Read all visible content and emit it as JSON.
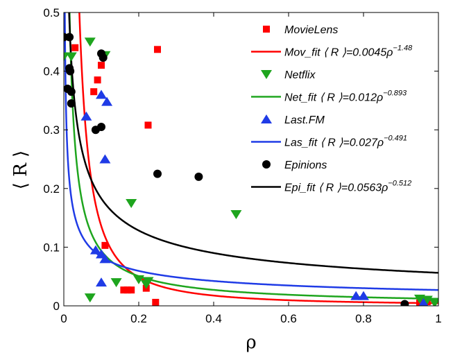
{
  "chart_data": {
    "type": "scatter",
    "title": "",
    "xlabel": "ρ",
    "ylabel": "⟨ R ⟩",
    "xlim": [
      0,
      1
    ],
    "ylim": [
      0,
      0.5
    ],
    "x_ticks": [
      0,
      0.2,
      0.4,
      0.6,
      0.8,
      1
    ],
    "x_tick_labels": [
      "0",
      "0.2",
      "0.4",
      "0.6",
      "0.8",
      "1"
    ],
    "y_ticks": [
      0,
      0.1,
      0.2,
      0.3,
      0.4,
      0.5
    ],
    "y_tick_labels": [
      "0",
      "0.1",
      "0.2",
      "0.3",
      "0.4",
      "0.5"
    ],
    "legend_position": "top-right",
    "series": [
      {
        "name": "MovieLens",
        "marker": "square",
        "color": "#ff0000",
        "points": [
          [
            0.03,
            0.44
          ],
          [
            0.08,
            0.365
          ],
          [
            0.09,
            0.385
          ],
          [
            0.1,
            0.41
          ],
          [
            0.11,
            0.103
          ],
          [
            0.16,
            0.027
          ],
          [
            0.17,
            0.027
          ],
          [
            0.18,
            0.027
          ],
          [
            0.22,
            0.03
          ],
          [
            0.225,
            0.308
          ],
          [
            0.245,
            0.006
          ],
          [
            0.25,
            0.437
          ],
          [
            0.95,
            0.005
          ],
          [
            0.97,
            0.007
          ]
        ]
      },
      {
        "name": "Netflix",
        "marker": "triangle-down",
        "color": "#1ea51e",
        "points": [
          [
            0.0,
            0.425
          ],
          [
            0.02,
            0.425
          ],
          [
            0.07,
            0.014
          ],
          [
            0.07,
            0.45
          ],
          [
            0.11,
            0.427
          ],
          [
            0.14,
            0.04
          ],
          [
            0.18,
            0.175
          ],
          [
            0.2,
            0.045
          ],
          [
            0.22,
            0.037
          ],
          [
            0.225,
            0.042
          ],
          [
            0.46,
            0.156
          ],
          [
            0.95,
            0.012
          ],
          [
            0.97,
            0.01
          ],
          [
            0.99,
            0.005
          ]
        ]
      },
      {
        "name": "Last.FM",
        "marker": "triangle-up",
        "color": "#1f3be6",
        "points": [
          [
            0.06,
            0.323
          ],
          [
            0.085,
            0.095
          ],
          [
            0.1,
            0.088
          ],
          [
            0.1,
            0.36
          ],
          [
            0.1,
            0.04
          ],
          [
            0.11,
            0.25
          ],
          [
            0.11,
            0.08
          ],
          [
            0.115,
            0.348
          ],
          [
            0.78,
            0.017
          ],
          [
            0.8,
            0.017
          ],
          [
            0.96,
            0.005
          ]
        ]
      },
      {
        "name": "Epinions",
        "marker": "circle",
        "color": "#000000",
        "points": [
          [
            0.0,
            0.458
          ],
          [
            0.015,
            0.458
          ],
          [
            0.01,
            0.37
          ],
          [
            0.015,
            0.405
          ],
          [
            0.017,
            0.4
          ],
          [
            0.02,
            0.365
          ],
          [
            0.02,
            0.345
          ],
          [
            0.085,
            0.3
          ],
          [
            0.1,
            0.305
          ],
          [
            0.1,
            0.43
          ],
          [
            0.105,
            0.423
          ],
          [
            0.25,
            0.225
          ],
          [
            0.36,
            0.22
          ],
          [
            0.91,
            0.003
          ]
        ]
      }
    ],
    "fits": [
      {
        "name": "Mov_fit",
        "label": "Mov_fit ⟨ R ⟩=0.0045ρ",
        "exponent_label": "−1.48",
        "a": 0.0045,
        "b": -1.48,
        "color": "#ff0000"
      },
      {
        "name": "Net_fit",
        "label": "Net_fit ⟨ R ⟩=0.012ρ",
        "exponent_label": "−0.893",
        "a": 0.012,
        "b": -0.893,
        "color": "#1ea51e"
      },
      {
        "name": "Las_fit",
        "label": "Las_fit ⟨ R ⟩=0.027ρ",
        "exponent_label": "−0.491",
        "a": 0.027,
        "b": -0.491,
        "color": "#1f3be6"
      },
      {
        "name": "Epi_fit",
        "label": "Epi_fit ⟨ R ⟩=0.0563ρ",
        "exponent_label": "−0.512",
        "a": 0.0563,
        "b": -0.512,
        "color": "#000000"
      }
    ]
  }
}
